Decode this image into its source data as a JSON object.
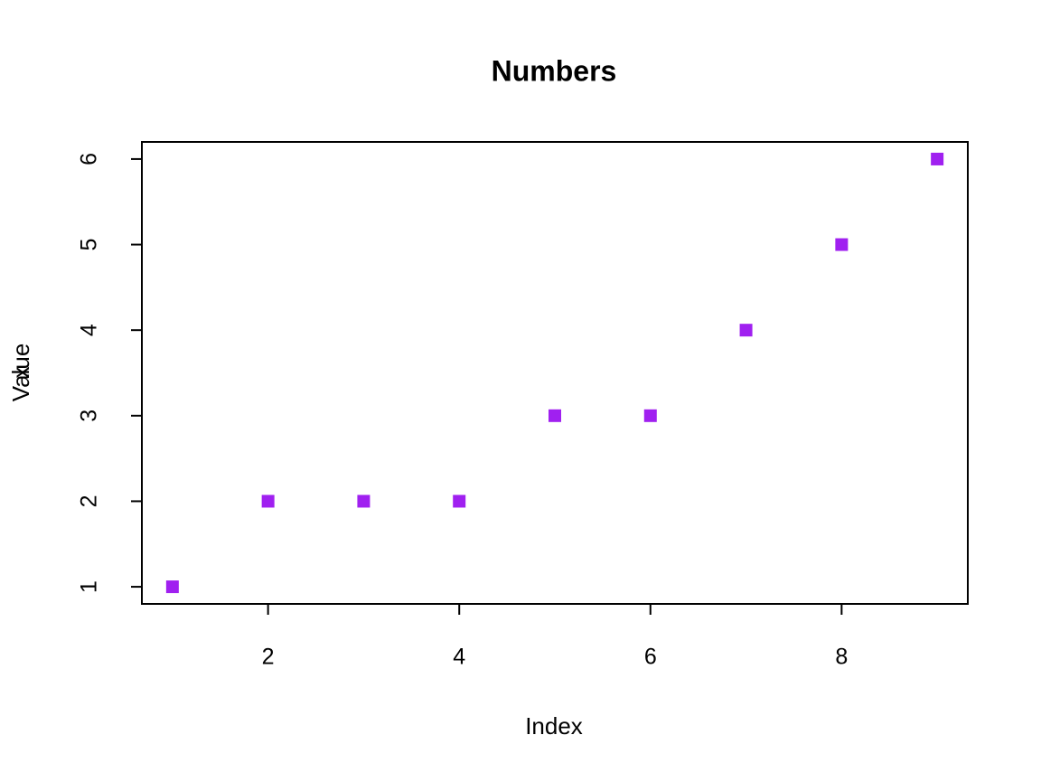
{
  "chart_data": {
    "type": "scatter",
    "title": "Numbers",
    "xlabel": "Index",
    "ylabel": "Value",
    "ylabel_overlap": "x",
    "x": [
      1,
      2,
      3,
      4,
      5,
      6,
      7,
      8,
      9
    ],
    "values": [
      1,
      2,
      2,
      2,
      3,
      3,
      4,
      5,
      6
    ],
    "color": "#a020f0",
    "xlim": [
      0.68,
      9.32
    ],
    "ylim": [
      0.8,
      6.2
    ],
    "xticks": [
      2,
      4,
      6,
      8
    ],
    "yticks": [
      1,
      2,
      3,
      4,
      5,
      6
    ]
  }
}
